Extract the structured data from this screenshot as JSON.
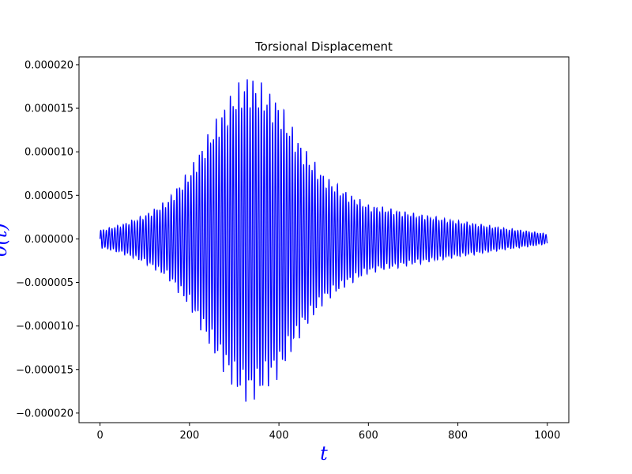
{
  "chart_data": {
    "type": "line",
    "title": "Torsional Displacement",
    "xlabel": "t",
    "ylabel": "θ(t)",
    "xlim": [
      -47,
      1048
    ],
    "ylim": [
      -2.11e-05,
      2.09e-05
    ],
    "xticks": [
      0,
      200,
      400,
      600,
      800,
      1000
    ],
    "yticks": [
      -2e-05,
      -1.5e-05,
      -1e-05,
      -5e-06,
      0,
      5e-06,
      1e-05,
      1.5e-05,
      2e-05
    ],
    "xtick_labels": [
      "0",
      "200",
      "400",
      "600",
      "800",
      "1000"
    ],
    "ytick_labels": [
      "−0.000020",
      "−0.000015",
      "−0.000010",
      "−0.000005",
      "0.000000",
      "0.000005",
      "0.000010",
      "0.000015",
      "0.000020"
    ],
    "grid": false,
    "series": [
      {
        "color": "#0000ff",
        "envelope": {
          "t": [
            0,
            50,
            100,
            150,
            200,
            250,
            300,
            330,
            350,
            400,
            450,
            500,
            550,
            600,
            650,
            700,
            800,
            900,
            1000
          ],
          "amplitude": [
            1e-06,
            1.7e-06,
            2.8e-06,
            4.5e-06,
            8e-06,
            1.3e-05,
            1.75e-05,
            1.9e-05,
            1.85e-05,
            1.6e-05,
            1.1e-05,
            7.5e-06,
            5.5e-06,
            4e-06,
            3.5e-06,
            3e-06,
            2.1e-06,
            1.3e-06,
            6e-07
          ]
        },
        "oscillation_period": 6.3
      }
    ],
    "label_colors": {
      "axis_label": "#0000ff"
    }
  }
}
